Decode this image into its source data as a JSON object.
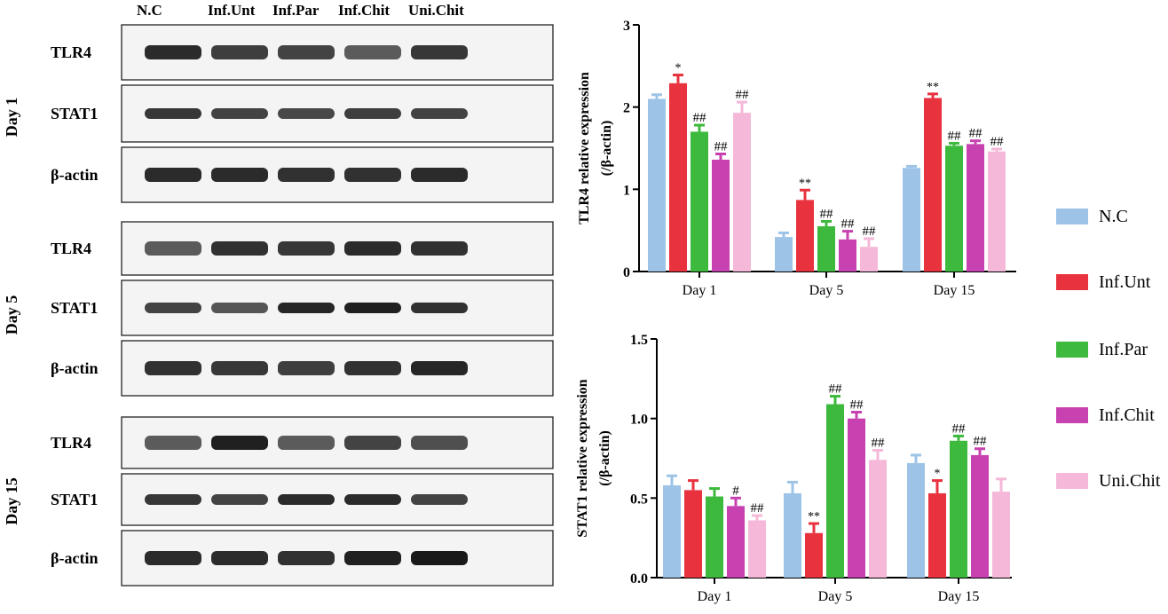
{
  "blot": {
    "lane_labels": [
      "N.C",
      "Inf.Unt",
      "Inf.Par",
      "Inf.Chit",
      "Uni.Chit"
    ],
    "groups": [
      {
        "day": "Day 1",
        "rows": [
          "TLR4",
          "STAT1",
          "β-actin"
        ]
      },
      {
        "day": "Day 5",
        "rows": [
          "TLR4",
          "STAT1",
          "β-actin"
        ]
      },
      {
        "day": "Day 15",
        "rows": [
          "TLR4",
          "STAT1",
          "β-actin"
        ]
      }
    ],
    "band_intensity": [
      [
        [
          0.9,
          0.82,
          0.8,
          0.7,
          0.85
        ],
        [
          0.85,
          0.8,
          0.78,
          0.82,
          0.8
        ],
        [
          0.9,
          0.9,
          0.88,
          0.88,
          0.9
        ]
      ],
      [
        [
          0.7,
          0.88,
          0.85,
          0.9,
          0.88
        ],
        [
          0.8,
          0.72,
          0.92,
          0.95,
          0.88
        ],
        [
          0.88,
          0.85,
          0.82,
          0.88,
          0.92
        ]
      ],
      [
        [
          0.7,
          0.95,
          0.7,
          0.8,
          0.75
        ],
        [
          0.85,
          0.8,
          0.9,
          0.9,
          0.8
        ],
        [
          0.9,
          0.9,
          0.88,
          0.95,
          0.98
        ]
      ]
    ]
  },
  "legend": [
    {
      "label": "N.C",
      "color": "#9dc3e6"
    },
    {
      "label": "Inf.Unt",
      "color": "#e8323e"
    },
    {
      "label": "Inf.Par",
      "color": "#3db93d"
    },
    {
      "label": "Inf.Chit",
      "color": "#c742b0"
    },
    {
      "label": "Uni.Chit",
      "color": "#f5b8d8"
    }
  ],
  "chart_data": [
    {
      "type": "bar",
      "ylabel": "TLR4 relative expression",
      "ylabel2": "(/β-actin)",
      "xlabel": "",
      "ylim": [
        0,
        3
      ],
      "yticks": [
        "0",
        "1",
        "2",
        "3"
      ],
      "categories": [
        "Day 1",
        "Day 5",
        "Day 15"
      ],
      "series": [
        {
          "name": "N.C",
          "values": [
            2.1,
            0.42,
            1.26
          ],
          "errors": [
            0.05,
            0.05,
            0.02
          ]
        },
        {
          "name": "Inf.Unt",
          "values": [
            2.29,
            0.87,
            2.11
          ],
          "errors": [
            0.1,
            0.12,
            0.05
          ]
        },
        {
          "name": "Inf.Par",
          "values": [
            1.7,
            0.55,
            1.53
          ],
          "errors": [
            0.08,
            0.06,
            0.03
          ]
        },
        {
          "name": "Inf.Chit",
          "values": [
            1.36,
            0.39,
            1.55
          ],
          "errors": [
            0.07,
            0.1,
            0.04
          ]
        },
        {
          "name": "Uni.Chit",
          "values": [
            1.93,
            0.3,
            1.46
          ],
          "errors": [
            0.13,
            0.1,
            0.03
          ]
        }
      ],
      "annotations": [
        [
          "",
          "*",
          "##",
          "##",
          "##"
        ],
        [
          "",
          "**",
          "##",
          "##",
          "##"
        ],
        [
          "",
          "**",
          "##",
          "##",
          "##"
        ]
      ]
    },
    {
      "type": "bar",
      "ylabel": "STAT1 relative expression",
      "ylabel2": "(/β-actin)",
      "xlabel": "",
      "ylim": [
        0,
        1.5
      ],
      "yticks": [
        "0.0",
        "0.5",
        "1.0",
        "1.5"
      ],
      "categories": [
        "Day 1",
        "Day 5",
        "Day 15"
      ],
      "series": [
        {
          "name": "N.C",
          "values": [
            0.58,
            0.53,
            0.72
          ],
          "errors": [
            0.06,
            0.07,
            0.05
          ]
        },
        {
          "name": "Inf.Unt",
          "values": [
            0.55,
            0.28,
            0.53
          ],
          "errors": [
            0.06,
            0.06,
            0.08
          ]
        },
        {
          "name": "Inf.Par",
          "values": [
            0.51,
            1.09,
            0.86
          ],
          "errors": [
            0.05,
            0.05,
            0.03
          ]
        },
        {
          "name": "Inf.Chit",
          "values": [
            0.45,
            1.0,
            0.77
          ],
          "errors": [
            0.05,
            0.04,
            0.04
          ]
        },
        {
          "name": "Uni.Chit",
          "values": [
            0.36,
            0.74,
            0.54
          ],
          "errors": [
            0.03,
            0.06,
            0.08
          ]
        }
      ],
      "annotations": [
        [
          "",
          "",
          "",
          "#",
          "##"
        ],
        [
          "",
          "**",
          "##",
          "##",
          "##"
        ],
        [
          "",
          "*",
          "##",
          "##",
          ""
        ]
      ]
    }
  ]
}
